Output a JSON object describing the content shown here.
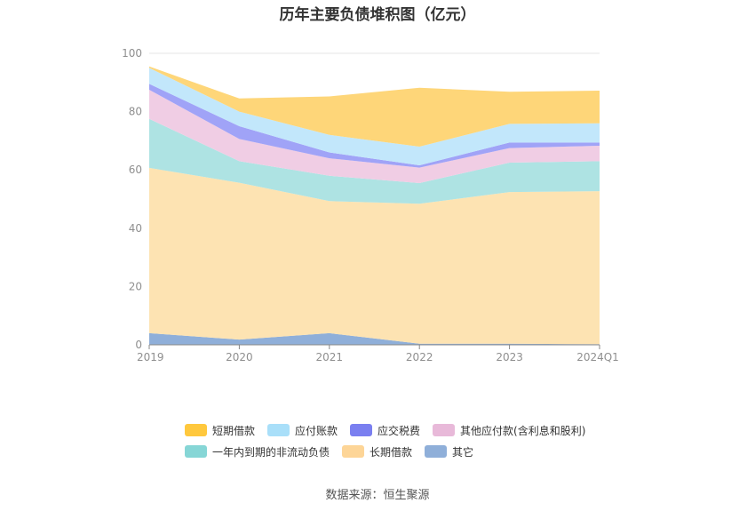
{
  "chart_data": {
    "type": "area",
    "stacked": true,
    "title": "历年主要负债堆积图（亿元）",
    "categories": [
      "2019",
      "2020",
      "2021",
      "2022",
      "2023",
      "2024Q1"
    ],
    "ylim": [
      0,
      100
    ],
    "yticks": [
      0,
      20,
      40,
      60,
      80,
      100
    ],
    "grid": true,
    "legend_position": "bottom",
    "series": [
      {
        "name": "其它",
        "color": "#8fafd9",
        "values": [
          4.0,
          1.8,
          4.0,
          0.4,
          0.4,
          0.2
        ]
      },
      {
        "name": "长期借款",
        "color": "#fde3b2",
        "values": [
          56.7,
          53.8,
          45.3,
          48.0,
          52.0,
          52.5
        ]
      },
      {
        "name": "一年内到期的非流动负债",
        "color": "#aee3e3",
        "values": [
          16.8,
          7.4,
          8.7,
          7.1,
          10.1,
          10.3
        ]
      },
      {
        "name": "其他应付款(含利息和股利)",
        "color": "#f0cde4",
        "values": [
          10.0,
          7.6,
          6.0,
          5.3,
          5.0,
          5.3
        ]
      },
      {
        "name": "应交税费",
        "color": "#a0a3f7",
        "values": [
          2.0,
          4.4,
          2.0,
          0.8,
          1.9,
          1.1
        ]
      },
      {
        "name": "应付账款",
        "color": "#c2e7fb",
        "values": [
          5.5,
          5.0,
          6.0,
          6.4,
          6.4,
          6.6
        ]
      },
      {
        "name": "短期借款",
        "color": "#fed679",
        "values": [
          0.5,
          4.5,
          13.2,
          20.2,
          11.0,
          11.2
        ]
      }
    ],
    "legend": [
      {
        "name": "短期借款",
        "color": "#ffc83d"
      },
      {
        "name": "应付账款",
        "color": "#a9dff9"
      },
      {
        "name": "应交税费",
        "color": "#7a7ff0"
      },
      {
        "name": "其他应付款(含利息和股利)",
        "color": "#e8b9d9"
      },
      {
        "name": "一年内到期的非流动负债",
        "color": "#86d6d6"
      },
      {
        "name": "长期借款",
        "color": "#fdd597"
      },
      {
        "name": "其它",
        "color": "#8fafd9"
      }
    ]
  },
  "source": "数据来源：恒生聚源"
}
